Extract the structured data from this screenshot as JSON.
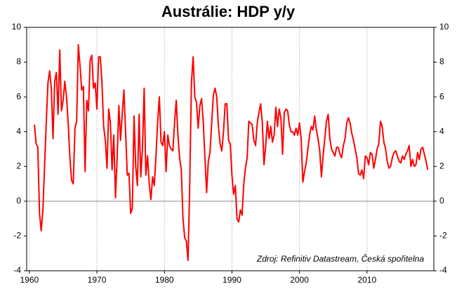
{
  "chart_data": {
    "type": "line",
    "title": "Austrálie: HDP y/y",
    "annotation": "Zdroj: Refinitiv Datastream, Česká spořitelna",
    "color": "#ff0000",
    "grid": true,
    "xlim": [
      1959.6,
      2019.9
    ],
    "xticks": [
      1960,
      1970,
      1980,
      1990,
      2000,
      2010
    ],
    "ylim": [
      -4,
      10
    ],
    "yticks": [
      -4,
      -2,
      0,
      2,
      4,
      6,
      8,
      10
    ],
    "y2lim": [
      -4,
      10
    ],
    "y2ticks": [
      -4,
      -2,
      0,
      2,
      4,
      6,
      8,
      10
    ],
    "x": [
      1960.75,
      1961,
      1961.25,
      1961.5,
      1961.75,
      1962,
      1962.25,
      1962.5,
      1962.75,
      1963,
      1963.25,
      1963.5,
      1963.75,
      1964,
      1964.25,
      1964.5,
      1964.75,
      1965,
      1965.25,
      1965.5,
      1965.75,
      1966,
      1966.25,
      1966.5,
      1966.75,
      1967,
      1967.25,
      1967.5,
      1967.75,
      1968,
      1968.25,
      1968.5,
      1968.75,
      1969,
      1969.25,
      1969.5,
      1969.75,
      1970,
      1970.25,
      1970.5,
      1970.75,
      1971,
      1971.25,
      1971.5,
      1971.75,
      1972,
      1972.25,
      1972.5,
      1972.75,
      1973,
      1973.25,
      1973.5,
      1973.75,
      1974,
      1974.25,
      1974.5,
      1974.75,
      1975,
      1975.25,
      1975.5,
      1975.75,
      1976,
      1976.25,
      1976.5,
      1976.75,
      1977,
      1977.25,
      1977.5,
      1977.75,
      1978,
      1978.25,
      1978.5,
      1978.75,
      1979,
      1979.25,
      1979.5,
      1979.75,
      1980,
      1980.25,
      1980.5,
      1980.75,
      1981,
      1981.25,
      1981.5,
      1981.75,
      1982,
      1982.25,
      1982.5,
      1982.75,
      1983,
      1983.25,
      1983.5,
      1983.75,
      1984,
      1984.25,
      1984.5,
      1984.75,
      1985,
      1985.25,
      1985.5,
      1985.75,
      1986,
      1986.25,
      1986.5,
      1986.75,
      1987,
      1987.25,
      1987.5,
      1987.75,
      1988,
      1988.25,
      1988.5,
      1988.75,
      1989,
      1989.25,
      1989.5,
      1989.75,
      1990,
      1990.25,
      1990.5,
      1990.75,
      1991,
      1991.25,
      1991.5,
      1991.75,
      1992,
      1992.25,
      1992.5,
      1992.75,
      1993,
      1993.25,
      1993.5,
      1993.75,
      1994,
      1994.25,
      1994.5,
      1994.75,
      1995,
      1995.25,
      1995.5,
      1995.75,
      1996,
      1996.25,
      1996.5,
      1996.75,
      1997,
      1997.25,
      1997.5,
      1997.75,
      1998,
      1998.25,
      1998.5,
      1998.75,
      1999,
      1999.25,
      1999.5,
      1999.75,
      2000,
      2000.25,
      2000.5,
      2000.75,
      2001,
      2001.25,
      2001.5,
      2001.75,
      2002,
      2002.25,
      2002.5,
      2002.75,
      2003,
      2003.25,
      2003.5,
      2003.75,
      2004,
      2004.25,
      2004.5,
      2004.75,
      2005,
      2005.25,
      2005.5,
      2005.75,
      2006,
      2006.25,
      2006.5,
      2006.75,
      2007,
      2007.25,
      2007.5,
      2007.75,
      2008,
      2008.25,
      2008.5,
      2008.75,
      2009,
      2009.25,
      2009.5,
      2009.75,
      2010,
      2010.25,
      2010.5,
      2010.75,
      2011,
      2011.25,
      2011.5,
      2011.75,
      2012,
      2012.25,
      2012.5,
      2012.75,
      2013,
      2013.25,
      2013.5,
      2013.75,
      2014,
      2014.25,
      2014.5,
      2014.75,
      2015,
      2015.25,
      2015.5,
      2015.75,
      2016,
      2016.25,
      2016.5,
      2016.75,
      2017,
      2017.25,
      2017.5,
      2017.75,
      2018,
      2018.25,
      2018.5,
      2018.75,
      2019
    ],
    "values": [
      4.4,
      3.3,
      3.1,
      -0.7,
      -1.7,
      -0.5,
      2.0,
      4.5,
      6.8,
      7.5,
      6.5,
      3.6,
      6.9,
      7.4,
      5.0,
      8.7,
      5.2,
      5.8,
      6.9,
      6.0,
      4.5,
      2.5,
      1.2,
      1.0,
      4.2,
      4.6,
      9.0,
      7.8,
      6.4,
      6.6,
      1.7,
      5.8,
      5.2,
      8.1,
      8.4,
      6.5,
      6.8,
      5.3,
      8.3,
      8.3,
      6.8,
      4.3,
      3.5,
      1.9,
      5.3,
      4.5,
      1.8,
      3.8,
      0.2,
      2.5,
      5.5,
      3.5,
      5.0,
      6.4,
      4.0,
      1.5,
      1.6,
      -0.7,
      -0.4,
      4.9,
      2.0,
      0.9,
      5.0,
      1.4,
      3.0,
      6.5,
      1.5,
      2.6,
      1.0,
      0.1,
      1.4,
      0.9,
      2.6,
      4.6,
      6.0,
      3.4,
      3.2,
      4.0,
      1.7,
      3.8,
      3.2,
      3.0,
      2.9,
      4.5,
      5.8,
      3.8,
      2.5,
      1.8,
      -1.0,
      -2.1,
      -2.3,
      -3.4,
      1.0,
      6.8,
      8.3,
      6.0,
      5.7,
      4.2,
      5.5,
      5.9,
      4.6,
      2.5,
      0.5,
      2.3,
      2.8,
      4.5,
      6.1,
      6.5,
      6.0,
      4.3,
      3.3,
      2.9,
      4.0,
      5.6,
      5.6,
      3.5,
      3.3,
      1.5,
      0.4,
      0.9,
      -1.0,
      -1.2,
      -0.5,
      -0.8,
      1.0,
      1.9,
      2.5,
      4.6,
      4.5,
      4.4,
      3.5,
      3.2,
      4.5,
      5.1,
      5.6,
      4.5,
      2.1,
      3.2,
      4.6,
      3.6,
      4.3,
      3.4,
      3.8,
      5.4,
      4.3,
      5.3,
      4.8,
      2.7,
      5.1,
      5.3,
      5.2,
      4.4,
      4.0,
      4.0,
      3.8,
      4.2,
      3.8,
      4.5,
      3.6,
      1.1,
      1.7,
      2.2,
      3.0,
      3.8,
      4.3,
      4.1,
      4.9,
      4.1,
      3.6,
      2.9,
      1.4,
      2.6,
      3.6,
      4.6,
      5.0,
      3.6,
      3.0,
      2.8,
      2.6,
      3.1,
      3.1,
      2.7,
      2.5,
      3.2,
      3.6,
      4.5,
      4.8,
      4.5,
      3.9,
      3.5,
      3.0,
      2.5,
      1.6,
      1.5,
      1.8,
      1.3,
      2.6,
      2.5,
      2.1,
      2.8,
      2.7,
      1.9,
      2.4,
      3.0,
      3.3,
      4.6,
      4.3,
      3.4,
      3.0,
      2.3,
      1.9,
      2.0,
      2.5,
      2.8,
      2.9,
      2.6,
      2.3,
      2.2,
      2.6,
      2.4,
      2.7,
      2.9,
      3.2,
      2.0,
      2.4,
      2.0,
      2.1,
      2.8,
      2.4,
      3.0,
      3.1,
      2.7,
      2.3,
      1.8
    ]
  }
}
